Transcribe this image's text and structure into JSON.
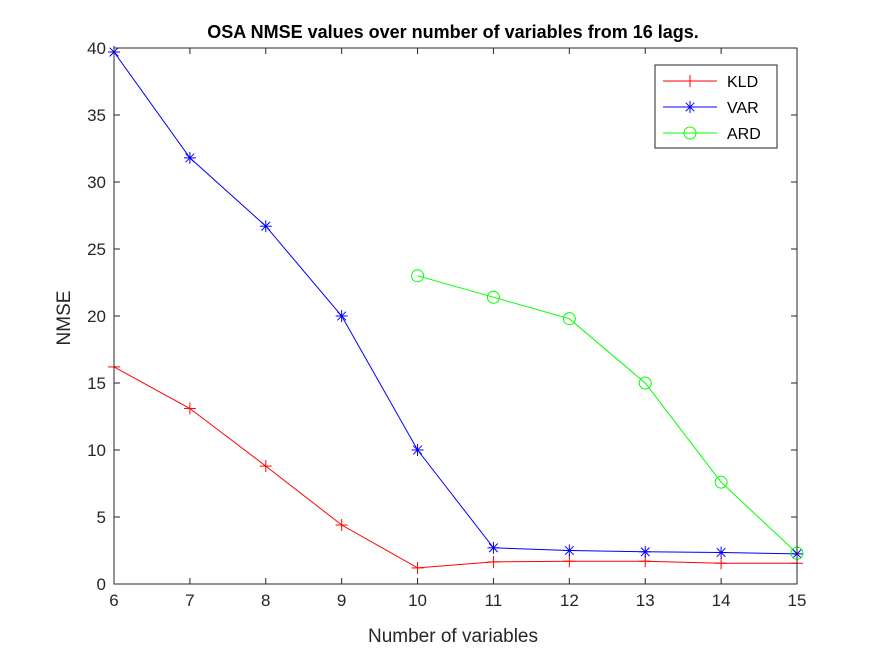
{
  "chart_data": {
    "type": "line",
    "title": "OSA NMSE values over number of variables from 16 lags.",
    "xlabel": "Number of variables",
    "ylabel": "NMSE",
    "xlim": [
      6,
      15
    ],
    "ylim": [
      0,
      40
    ],
    "xticks": [
      "6",
      "7",
      "8",
      "9",
      "10",
      "11",
      "12",
      "13",
      "14",
      "15"
    ],
    "yticks": [
      "0",
      "5",
      "10",
      "15",
      "20",
      "25",
      "30",
      "35",
      "40"
    ],
    "grid": false,
    "legend_position": "top-right",
    "series": [
      {
        "name": "KLD",
        "color": "#ff0000",
        "marker": "plus",
        "x": [
          6,
          7,
          8,
          9,
          10,
          11,
          12,
          13,
          14,
          15
        ],
        "y": [
          16.2,
          13.1,
          8.8,
          4.4,
          1.2,
          1.65,
          1.7,
          1.7,
          1.55,
          1.55
        ]
      },
      {
        "name": "VAR",
        "color": "#0000ff",
        "marker": "asterisk",
        "x": [
          6,
          7,
          8,
          9,
          10,
          11,
          12,
          13,
          14,
          15
        ],
        "y": [
          39.7,
          31.8,
          26.7,
          20.0,
          10.0,
          2.7,
          2.5,
          2.4,
          2.35,
          2.25
        ]
      },
      {
        "name": "ARD",
        "color": "#00ff00",
        "marker": "circle",
        "x": [
          10,
          11,
          12,
          13,
          14,
          15
        ],
        "y": [
          23.0,
          21.4,
          19.8,
          15.0,
          7.6,
          2.3
        ]
      }
    ]
  }
}
